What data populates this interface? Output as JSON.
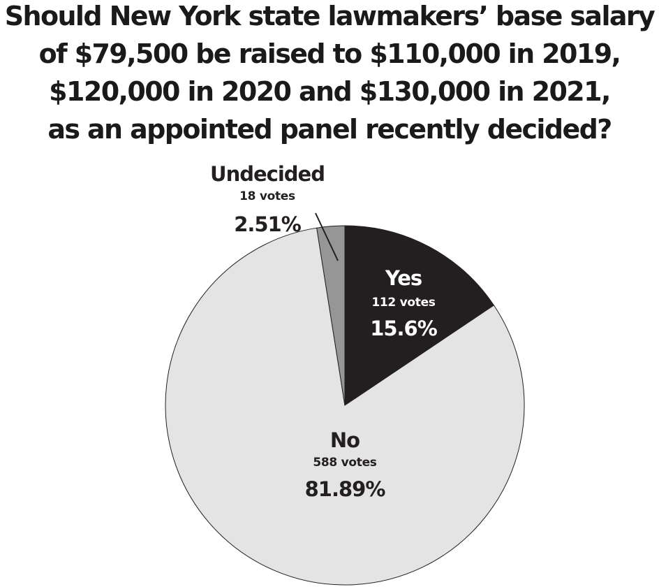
{
  "chart_data": {
    "type": "pie",
    "title_lines": [
      "Should New York state lawmakers’ base salary",
      "of $79,500 be raised to $110,000 in 2019,",
      "$120,000 in 2020 and $130,000 in 2021,",
      "as an appointed panel recently decided?"
    ],
    "slices": [
      {
        "name": "Yes",
        "votes_label": "112 votes",
        "percent_label": "15.6%",
        "value": 112,
        "color": "#231f20",
        "text_color": "#ffffff"
      },
      {
        "name": "No",
        "votes_label": "588 votes",
        "percent_label": "81.89%",
        "value": 588,
        "color": "#e4e4e4",
        "text_color": "#231f20"
      },
      {
        "name": "Undecided",
        "votes_label": "18 votes",
        "percent_label": "2.51%",
        "value": 18,
        "color": "#969696",
        "text_color": "#231f20"
      }
    ],
    "start_angle": "top",
    "direction": "clockwise"
  }
}
